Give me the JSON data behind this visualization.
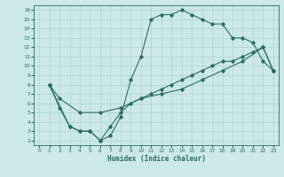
{
  "xlabel": "Humidex (Indice chaleur)",
  "bg_color": "#cce8e8",
  "grid_color": "#b0d4d4",
  "line_color": "#2a6e65",
  "xlim": [
    -0.5,
    23.5
  ],
  "ylim": [
    1.5,
    16.5
  ],
  "xticks": [
    0,
    1,
    2,
    3,
    4,
    5,
    6,
    7,
    8,
    9,
    10,
    11,
    12,
    13,
    14,
    15,
    16,
    17,
    18,
    19,
    20,
    21,
    22,
    23
  ],
  "yticks": [
    2,
    3,
    4,
    5,
    6,
    7,
    8,
    9,
    10,
    11,
    12,
    13,
    14,
    15,
    16
  ],
  "curve1_x": [
    1,
    2,
    3,
    4,
    5,
    6,
    7,
    8,
    9,
    10,
    11,
    12,
    13,
    14,
    15,
    16,
    17,
    18,
    19,
    20,
    21,
    22,
    23
  ],
  "curve1_y": [
    8,
    5.5,
    3.5,
    3.0,
    3.0,
    2.0,
    2.5,
    4.5,
    8.5,
    11.0,
    15.0,
    15.5,
    15.5,
    16.0,
    15.5,
    15.0,
    14.5,
    14.5,
    13.0,
    13.0,
    12.5,
    10.5,
    9.5
  ],
  "curve2_x": [
    1,
    3,
    4,
    5,
    6,
    7,
    8,
    9,
    10,
    11,
    12,
    13,
    14,
    15,
    16,
    17,
    18,
    19,
    20,
    21,
    22,
    23
  ],
  "curve2_y": [
    8,
    3.5,
    3.0,
    3.0,
    2.0,
    3.5,
    5.0,
    6.0,
    6.5,
    7.0,
    7.5,
    8.0,
    8.5,
    9.0,
    9.5,
    10.0,
    10.5,
    10.5,
    11.0,
    11.5,
    12.0,
    9.5
  ],
  "curve3_x": [
    1,
    2,
    4,
    6,
    8,
    10,
    12,
    14,
    16,
    18,
    20,
    22,
    23
  ],
  "curve3_y": [
    8,
    6.5,
    5.0,
    5.0,
    5.5,
    6.5,
    7.0,
    7.5,
    8.5,
    9.5,
    10.5,
    12.0,
    9.5
  ]
}
